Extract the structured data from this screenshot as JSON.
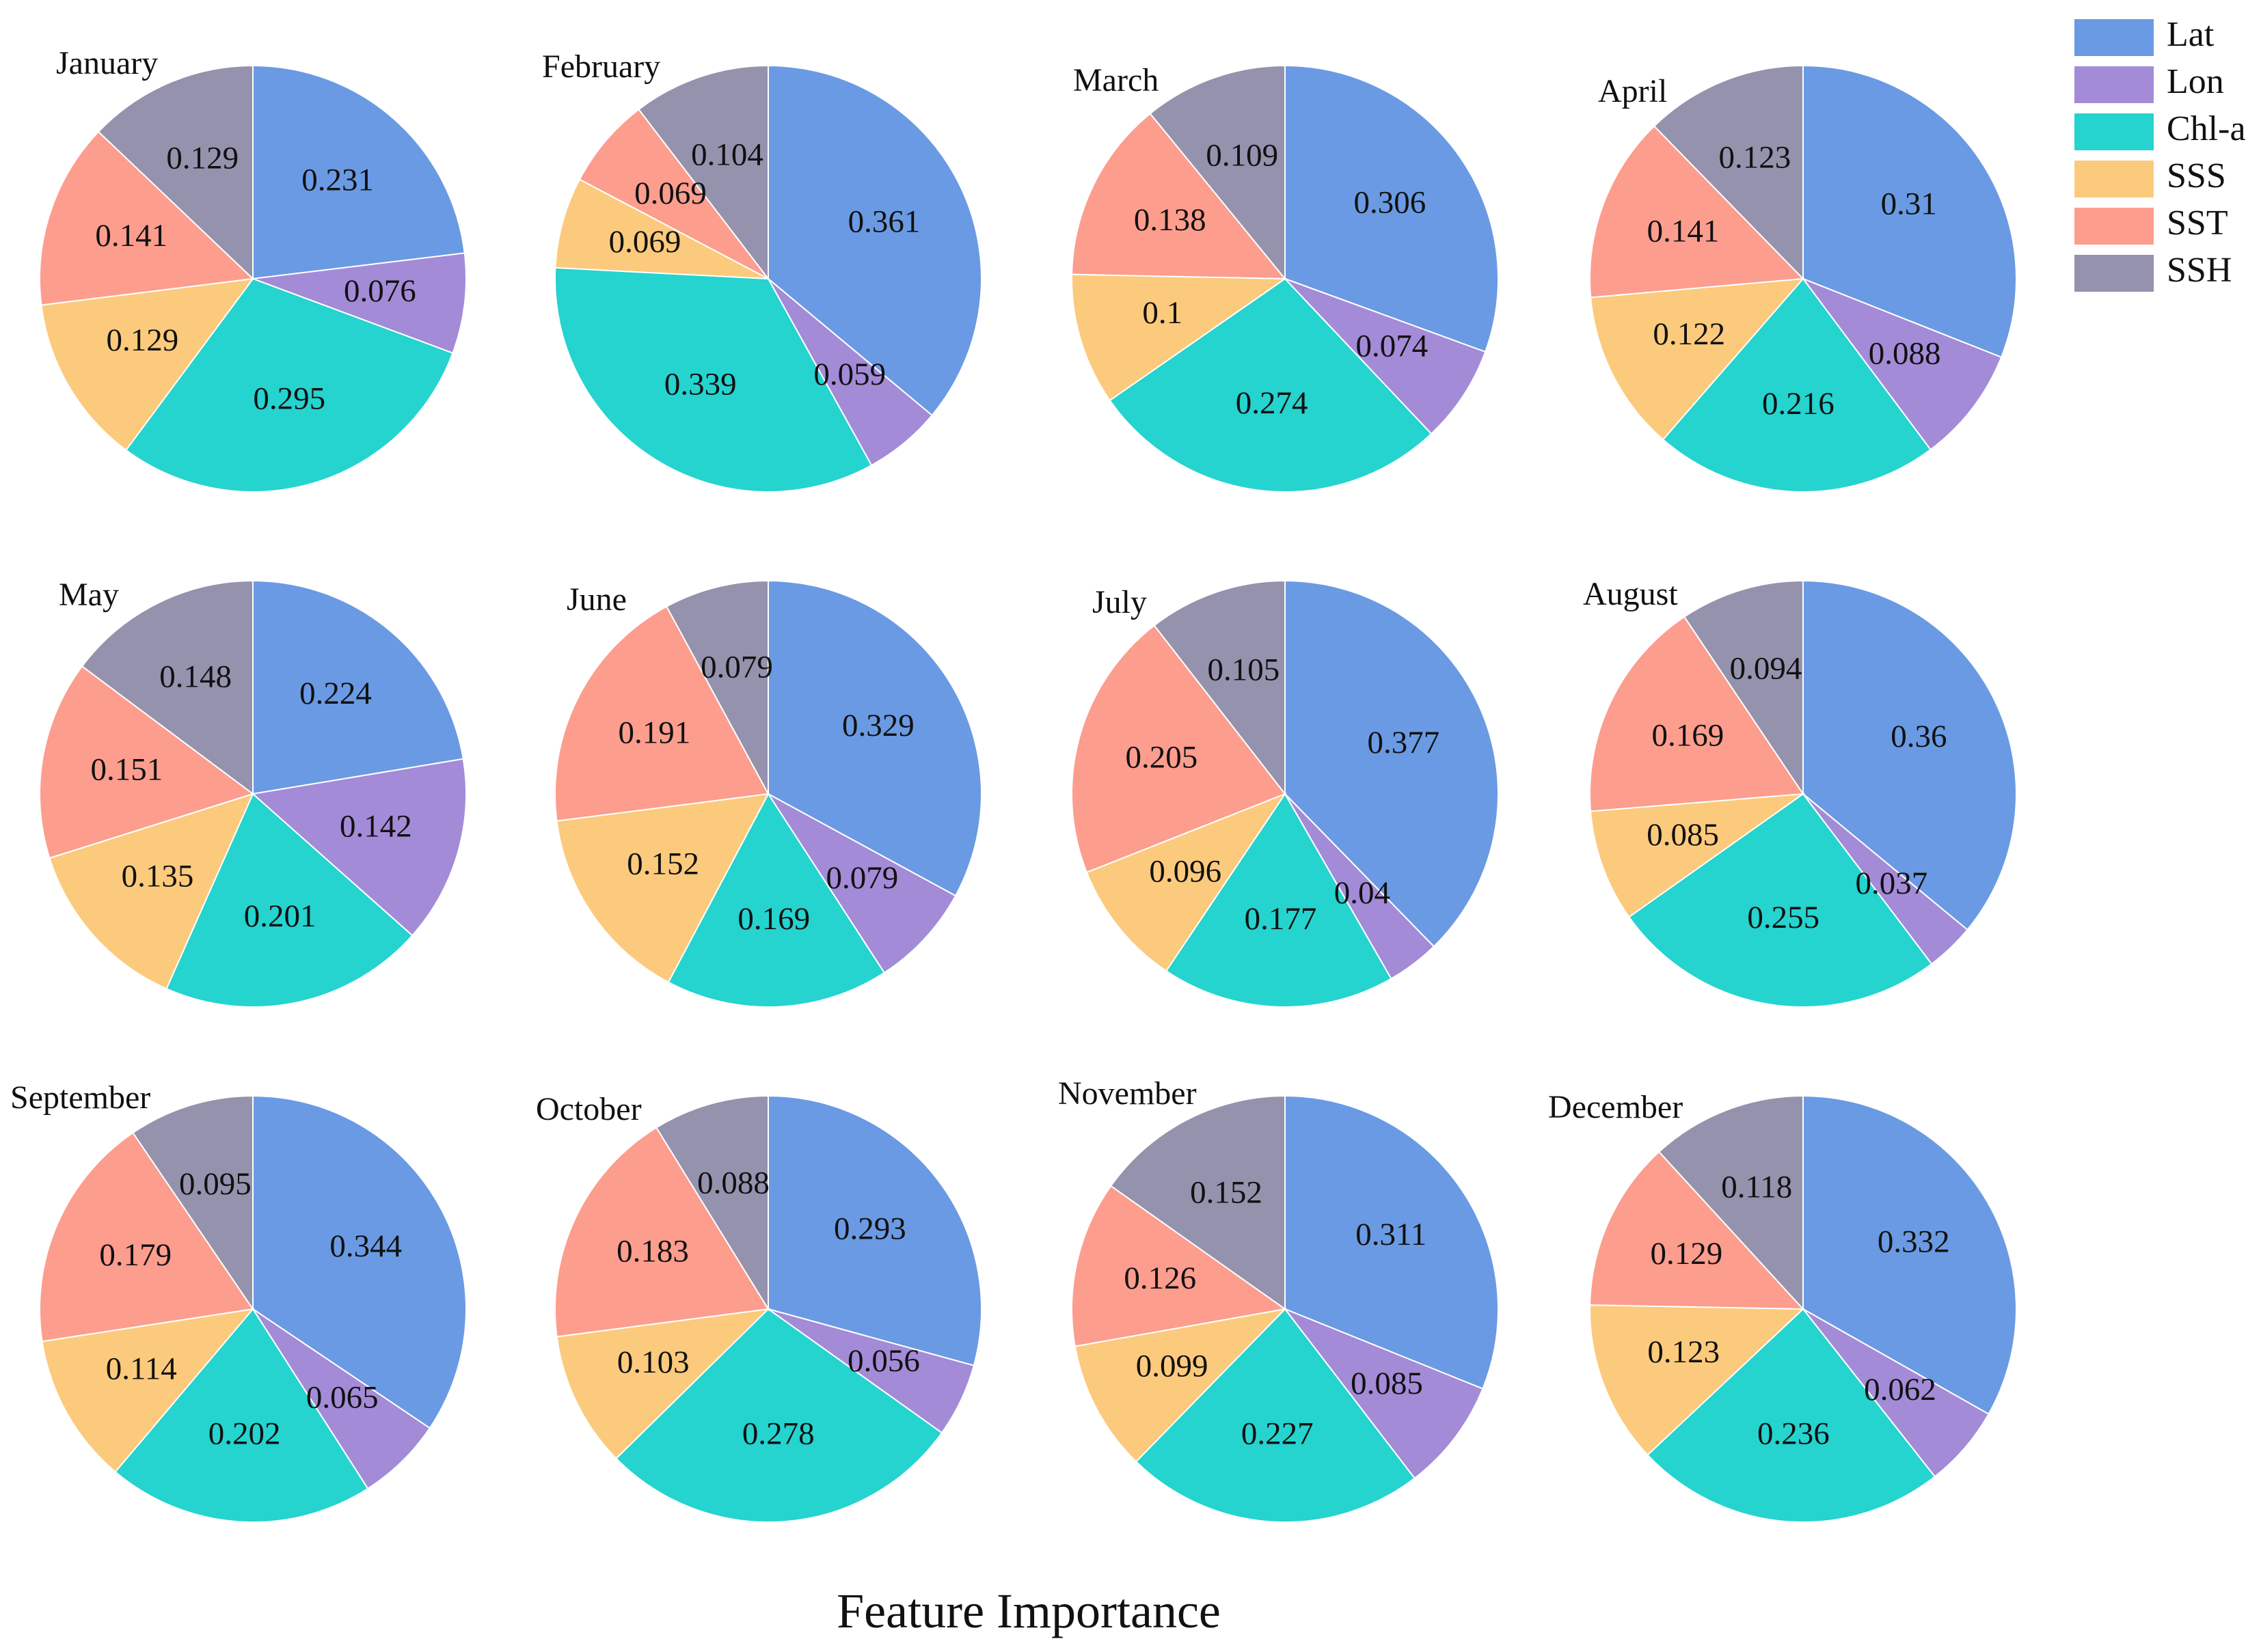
{
  "chart_data": [
    {
      "type": "pie",
      "title": "January",
      "labels": [
        "Lat",
        "Lon",
        "Chl-a",
        "SSS",
        "SST",
        "SSH"
      ],
      "values": [
        0.231,
        0.076,
        0.295,
        0.129,
        0.141,
        0.129
      ]
    },
    {
      "type": "pie",
      "title": "February",
      "labels": [
        "Lat",
        "Lon",
        "Chl-a",
        "SSS",
        "SST",
        "SSH"
      ],
      "values": [
        0.361,
        0.059,
        0.339,
        0.069,
        0.069,
        0.104
      ]
    },
    {
      "type": "pie",
      "title": "March",
      "labels": [
        "Lat",
        "Lon",
        "Chl-a",
        "SSS",
        "SST",
        "SSH"
      ],
      "values": [
        0.306,
        0.074,
        0.274,
        0.1,
        0.138,
        0.109
      ]
    },
    {
      "type": "pie",
      "title": "April",
      "labels": [
        "Lat",
        "Lon",
        "Chl-a",
        "SSS",
        "SST",
        "SSH"
      ],
      "values": [
        0.31,
        0.088,
        0.216,
        0.122,
        0.141,
        0.123
      ]
    },
    {
      "type": "pie",
      "title": "May",
      "labels": [
        "Lat",
        "Lon",
        "Chl-a",
        "SSS",
        "SST",
        "SSH"
      ],
      "values": [
        0.224,
        0.142,
        0.201,
        0.135,
        0.151,
        0.148
      ]
    },
    {
      "type": "pie",
      "title": "June",
      "labels": [
        "Lat",
        "Lon",
        "Chl-a",
        "SSS",
        "SST",
        "SSH"
      ],
      "values": [
        0.329,
        0.079,
        0.169,
        0.152,
        0.191,
        0.079
      ]
    },
    {
      "type": "pie",
      "title": "July",
      "labels": [
        "Lat",
        "Lon",
        "Chl-a",
        "SSS",
        "SST",
        "SSH"
      ],
      "values": [
        0.377,
        0.04,
        0.177,
        0.096,
        0.205,
        0.105
      ]
    },
    {
      "type": "pie",
      "title": "August",
      "labels": [
        "Lat",
        "Lon",
        "Chl-a",
        "SSS",
        "SST",
        "SSH"
      ],
      "values": [
        0.36,
        0.037,
        0.255,
        0.085,
        0.169,
        0.094
      ]
    },
    {
      "type": "pie",
      "title": "September",
      "labels": [
        "Lat",
        "Lon",
        "Chl-a",
        "SSS",
        "SST",
        "SSH"
      ],
      "values": [
        0.344,
        0.065,
        0.202,
        0.114,
        0.179,
        0.095
      ]
    },
    {
      "type": "pie",
      "title": "October",
      "labels": [
        "Lat",
        "Lon",
        "Chl-a",
        "SSS",
        "SST",
        "SSH"
      ],
      "values": [
        0.293,
        0.056,
        0.278,
        0.103,
        0.183,
        0.088
      ]
    },
    {
      "type": "pie",
      "title": "November",
      "labels": [
        "Lat",
        "Lon",
        "Chl-a",
        "SSS",
        "SST",
        "SSH"
      ],
      "values": [
        0.311,
        0.085,
        0.227,
        0.099,
        0.126,
        0.152
      ]
    },
    {
      "type": "pie",
      "title": "December",
      "labels": [
        "Lat",
        "Lon",
        "Chl-a",
        "SSS",
        "SST",
        "SSH"
      ],
      "values": [
        0.332,
        0.062,
        0.236,
        0.123,
        0.129,
        0.118
      ]
    }
  ],
  "legend": {
    "items": [
      {
        "label": "Lat",
        "color": "#6a9ae3"
      },
      {
        "label": "Lon",
        "color": "#a38bd8"
      },
      {
        "label": "Chl-a",
        "color": "#25d3cf"
      },
      {
        "label": "SSS",
        "color": "#fcca7c"
      },
      {
        "label": "SST",
        "color": "#fc9d8e"
      },
      {
        "label": "SSH",
        "color": "#9492ad"
      }
    ],
    "placement": "top-right"
  },
  "xlabel": "Feature Importance"
}
